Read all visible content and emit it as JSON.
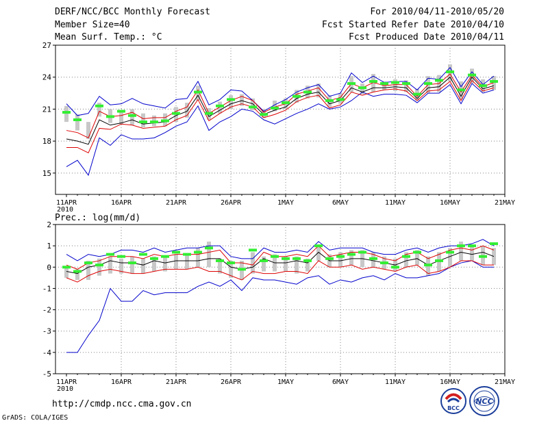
{
  "header": {
    "title": "DERF/NCC/BCC Monthly Forecast",
    "member_size": "Member Size=40",
    "variable": "Mean Surf. Temp.: °C",
    "period": "For 2010/04/11-2010/05/20",
    "started": "Fcst Started Refer Date 2010/04/10",
    "produced": "Fcst Produced Date 2010/04/11"
  },
  "footer": {
    "url": "http://cmdp.ncc.cma.gov.cn",
    "credit": "GrADS: COLA/IGES",
    "logo_bcc": "BCC",
    "logo_ncc": "NCC"
  },
  "colors": {
    "ensemble_box": "#c8c8c8",
    "observed": "#33ee33",
    "mean": "#000000",
    "inner_band": "#dd0000",
    "outer_band": "#0000cc",
    "grid": "#808080"
  },
  "chart_data": [
    {
      "type": "line",
      "title": "Mean Surf. Temp.: °C",
      "x_tick_labels": [
        "11APR",
        "16APR",
        "21APR",
        "26APR",
        "1MAY",
        "6MAY",
        "11MAY",
        "16MAY",
        "21MAY"
      ],
      "x_year_label": "2010",
      "ylim": [
        13,
        27
      ],
      "y_ticks": [
        15,
        18,
        21,
        24,
        27
      ],
      "days": [
        0,
        1,
        2,
        3,
        4,
        5,
        6,
        7,
        8,
        9,
        10,
        11,
        12,
        13,
        14,
        15,
        16,
        17,
        18,
        19,
        20,
        21,
        22,
        23,
        24,
        25,
        26,
        27,
        28,
        29,
        30,
        31,
        32,
        33,
        34,
        35,
        36,
        37,
        38,
        39
      ],
      "series": [
        {
          "name": "ensemble max",
          "values": [
            15.6,
            16.2,
            14.8,
            18.3,
            17.6,
            18.6,
            18.2,
            18.2,
            18.3,
            18.8,
            19.4,
            19.8,
            21.3,
            19.0,
            19.8,
            20.3,
            21.0,
            20.8,
            20.0,
            19.6,
            20.1,
            20.6,
            21.0,
            21.5,
            21.0,
            21.2,
            21.8,
            22.6,
            22.2,
            22.4,
            22.4,
            22.3,
            21.6,
            22.5,
            22.5,
            23.3,
            21.5,
            23.4,
            22.5,
            22.8
          ]
        },
        {
          "name": "ensemble min",
          "values": [
            21.5,
            20.4,
            20.6,
            22.2,
            21.4,
            21.5,
            22.0,
            21.5,
            21.3,
            21.1,
            21.9,
            22.0,
            23.6,
            21.4,
            21.9,
            22.8,
            22.7,
            21.8,
            20.8,
            21.4,
            21.9,
            22.6,
            23.0,
            23.3,
            22.2,
            22.5,
            24.4,
            23.5,
            24.1,
            23.5,
            23.6,
            23.6,
            22.8,
            23.9,
            23.8,
            24.9,
            23.1,
            24.5,
            23.3,
            24.1
          ]
        },
        {
          "name": "lower inner",
          "values": [
            17.4,
            17.4,
            16.9,
            19.2,
            19.1,
            19.6,
            19.5,
            19.2,
            19.3,
            19.4,
            20.0,
            20.4,
            21.9,
            19.9,
            20.6,
            21.2,
            21.5,
            21.2,
            20.2,
            20.5,
            20.9,
            21.7,
            22.1,
            22.3,
            21.1,
            21.4,
            22.6,
            22.3,
            22.6,
            22.8,
            22.9,
            22.7,
            21.8,
            22.7,
            22.8,
            23.6,
            21.8,
            23.7,
            22.7,
            23.0
          ]
        },
        {
          "name": "upper inner",
          "values": [
            19.0,
            18.8,
            18.3,
            20.8,
            20.3,
            20.4,
            20.7,
            20.1,
            20.2,
            20.2,
            20.8,
            21.2,
            22.8,
            20.6,
            21.2,
            21.8,
            22.2,
            21.8,
            20.7,
            21.2,
            21.5,
            22.4,
            22.7,
            23.0,
            21.8,
            22.1,
            23.4,
            23.0,
            23.5,
            23.2,
            23.3,
            23.3,
            22.2,
            23.3,
            23.4,
            24.3,
            22.6,
            24.2,
            23.1,
            23.5
          ]
        },
        {
          "name": "ensemble mean",
          "values": [
            18.2,
            18.0,
            17.7,
            20.0,
            19.5,
            19.7,
            20.0,
            19.6,
            19.7,
            19.8,
            20.4,
            20.8,
            22.3,
            20.3,
            20.9,
            21.5,
            21.8,
            21.5,
            20.5,
            20.9,
            21.2,
            22.0,
            22.4,
            22.6,
            21.5,
            21.8,
            23.0,
            22.6,
            23.0,
            23.0,
            23.1,
            23.0,
            22.0,
            23.0,
            23.1,
            24.0,
            22.2,
            24.0,
            22.9,
            23.2
          ]
        },
        {
          "name": "observed",
          "values": [
            20.7,
            20.0,
            null,
            21.3,
            20.3,
            20.8,
            20.4,
            19.8,
            19.8,
            19.9,
            20.6,
            null,
            22.6,
            20.6,
            21.3,
            21.9,
            null,
            21.2,
            20.5,
            21.1,
            21.6,
            22.2,
            22.6,
            null,
            21.8,
            21.9,
            23.4,
            23.0,
            23.6,
            23.4,
            23.5,
            23.4,
            22.4,
            23.4,
            23.7,
            24.5,
            22.8,
            24.2,
            23.2,
            23.6
          ]
        }
      ],
      "ensemble_boxes": [
        [
          19.8,
          21.3
        ],
        [
          19.0,
          20.5
        ],
        [
          18.2,
          19.8
        ],
        [
          20.3,
          21.6
        ],
        [
          19.7,
          21.0
        ],
        [
          19.6,
          20.8
        ],
        [
          19.5,
          21.0
        ],
        [
          19.3,
          20.6
        ],
        [
          19.4,
          20.4
        ],
        [
          19.4,
          20.6
        ],
        [
          19.8,
          21.2
        ],
        [
          20.2,
          21.6
        ],
        [
          21.8,
          23.2
        ],
        [
          20.0,
          21.1
        ],
        [
          20.6,
          21.7
        ],
        [
          21.0,
          22.3
        ],
        [
          21.3,
          22.4
        ],
        [
          20.9,
          22.0
        ],
        [
          20.2,
          21.0
        ],
        [
          20.8,
          21.8
        ],
        [
          21.0,
          22.0
        ],
        [
          21.6,
          22.8
        ],
        [
          22.0,
          23.2
        ],
        [
          22.1,
          23.4
        ],
        [
          21.2,
          22.3
        ],
        [
          21.5,
          22.5
        ],
        [
          22.6,
          24.1
        ],
        [
          22.4,
          23.4
        ],
        [
          22.6,
          24.3
        ],
        [
          22.8,
          23.6
        ],
        [
          22.7,
          23.8
        ],
        [
          22.6,
          23.7
        ],
        [
          21.8,
          22.9
        ],
        [
          22.5,
          24.1
        ],
        [
          22.6,
          24.2
        ],
        [
          23.6,
          25.2
        ],
        [
          21.9,
          23.6
        ],
        [
          23.4,
          24.8
        ],
        [
          22.6,
          23.8
        ],
        [
          22.8,
          24.1
        ]
      ]
    },
    {
      "type": "line",
      "title": "Prec.: log(mm/d)",
      "x_tick_labels": [
        "11APR",
        "16APR",
        "21APR",
        "26APR",
        "1MAY",
        "6MAY",
        "11MAY",
        "16MAY",
        "21MAY"
      ],
      "x_year_label": "2010",
      "ylim": [
        -5,
        2
      ],
      "y_ticks": [
        -5,
        -4,
        -3,
        -2,
        -1,
        0,
        1,
        2
      ],
      "days": [
        0,
        1,
        2,
        3,
        4,
        5,
        6,
        7,
        8,
        9,
        10,
        11,
        12,
        13,
        14,
        15,
        16,
        17,
        18,
        19,
        20,
        21,
        22,
        23,
        24,
        25,
        26,
        27,
        28,
        29,
        30,
        31,
        32,
        33,
        34,
        35,
        36,
        37,
        38,
        39
      ],
      "series": [
        {
          "name": "ensemble max",
          "values": [
            0.6,
            0.3,
            0.6,
            0.5,
            0.6,
            0.8,
            0.8,
            0.7,
            0.9,
            0.7,
            0.8,
            0.9,
            0.9,
            1.0,
            1.0,
            0.5,
            0.4,
            0.4,
            0.9,
            0.7,
            0.7,
            0.8,
            0.7,
            1.2,
            0.8,
            0.9,
            0.9,
            0.9,
            0.7,
            0.6,
            0.6,
            0.8,
            0.9,
            0.7,
            0.9,
            1.0,
            1.0,
            1.1,
            1.3,
            1.0
          ]
        },
        {
          "name": "ensemble min",
          "values": [
            -4.0,
            -4.0,
            -3.2,
            -2.5,
            -1.0,
            -1.6,
            -1.6,
            -1.1,
            -1.3,
            -1.2,
            -1.2,
            -1.2,
            -0.9,
            -0.7,
            -0.9,
            -0.6,
            -1.1,
            -0.5,
            -0.6,
            -0.6,
            -0.7,
            -0.8,
            -0.5,
            -0.4,
            -0.8,
            -0.6,
            -0.7,
            -0.5,
            -0.4,
            -0.6,
            -0.3,
            -0.5,
            -0.5,
            -0.4,
            -0.3,
            0.0,
            0.2,
            0.3,
            0.0,
            0.0
          ]
        },
        {
          "name": "lower inner",
          "values": [
            -0.5,
            -0.7,
            -0.4,
            -0.2,
            -0.1,
            -0.2,
            -0.3,
            -0.3,
            -0.2,
            -0.1,
            -0.1,
            -0.1,
            0.0,
            -0.2,
            -0.2,
            -0.4,
            -0.6,
            -0.2,
            -0.3,
            -0.3,
            -0.2,
            -0.2,
            -0.3,
            0.3,
            0.0,
            0.0,
            0.1,
            -0.1,
            0.0,
            -0.1,
            -0.2,
            0.0,
            0.1,
            -0.3,
            -0.2,
            0.0,
            0.3,
            0.3,
            0.1,
            0.1
          ]
        },
        {
          "name": "upper inner",
          "values": [
            0.1,
            -0.1,
            0.2,
            0.3,
            0.5,
            0.5,
            0.5,
            0.4,
            0.6,
            0.5,
            0.6,
            0.6,
            0.6,
            0.7,
            0.8,
            0.2,
            0.2,
            0.1,
            0.7,
            0.5,
            0.5,
            0.6,
            0.5,
            1.0,
            0.5,
            0.6,
            0.7,
            0.7,
            0.6,
            0.4,
            0.3,
            0.6,
            0.7,
            0.4,
            0.6,
            0.8,
            0.9,
            0.8,
            1.0,
            0.8
          ]
        },
        {
          "name": "ensemble mean",
          "values": [
            -0.2,
            -0.3,
            0.0,
            0.1,
            0.3,
            0.2,
            0.2,
            0.1,
            0.3,
            0.2,
            0.3,
            0.3,
            0.3,
            0.4,
            0.4,
            0.0,
            -0.1,
            0.0,
            0.4,
            0.2,
            0.2,
            0.3,
            0.2,
            0.7,
            0.3,
            0.3,
            0.4,
            0.4,
            0.3,
            0.2,
            0.1,
            0.3,
            0.4,
            0.1,
            0.3,
            0.5,
            0.7,
            0.6,
            0.7,
            0.5
          ]
        },
        {
          "name": "observed",
          "values": [
            0.0,
            -0.2,
            0.2,
            0.1,
            0.6,
            0.5,
            0.2,
            0.6,
            0.4,
            0.5,
            0.7,
            0.6,
            0.7,
            0.9,
            0.3,
            0.2,
            -0.1,
            0.8,
            0.3,
            0.5,
            0.4,
            0.4,
            0.3,
            1.0,
            0.4,
            0.5,
            0.6,
            0.7,
            0.4,
            0.2,
            0.0,
            0.5,
            0.7,
            0.1,
            0.3,
            0.7,
            1.0,
            1.0,
            0.5,
            1.1
          ]
        }
      ],
      "ensemble_boxes": [
        [
          -0.5,
          0.0
        ],
        [
          -0.6,
          -0.1
        ],
        [
          -0.6,
          0.3
        ],
        [
          -0.4,
          0.4
        ],
        [
          -0.3,
          0.5
        ],
        [
          -0.3,
          0.4
        ],
        [
          -0.3,
          0.5
        ],
        [
          -0.3,
          0.4
        ],
        [
          -0.2,
          0.5
        ],
        [
          -0.2,
          0.5
        ],
        [
          -0.1,
          0.6
        ],
        [
          -0.1,
          0.6
        ],
        [
          0.0,
          0.9
        ],
        [
          0.0,
          1.2
        ],
        [
          -0.3,
          0.4
        ],
        [
          -0.5,
          0.3
        ],
        [
          -0.6,
          0.3
        ],
        [
          -0.3,
          0.7
        ],
        [
          -0.2,
          0.5
        ],
        [
          -0.2,
          0.6
        ],
        [
          -0.2,
          0.5
        ],
        [
          -0.3,
          0.5
        ],
        [
          -0.2,
          0.4
        ],
        [
          0.3,
          1.0
        ],
        [
          0.0,
          0.6
        ],
        [
          0.0,
          0.7
        ],
        [
          0.1,
          0.8
        ],
        [
          0.0,
          0.8
        ],
        [
          0.0,
          0.7
        ],
        [
          -0.1,
          0.5
        ],
        [
          -0.2,
          0.4
        ],
        [
          0.0,
          0.7
        ],
        [
          0.1,
          0.8
        ],
        [
          -0.4,
          0.5
        ],
        [
          -0.2,
          0.7
        ],
        [
          0.0,
          0.9
        ],
        [
          0.3,
          1.2
        ],
        [
          0.3,
          1.0
        ],
        [
          0.1,
          1.0
        ],
        [
          0.1,
          0.9
        ]
      ]
    }
  ]
}
